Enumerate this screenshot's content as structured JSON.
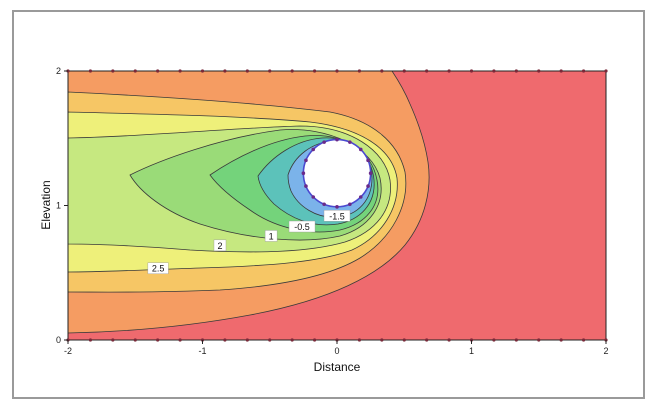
{
  "chart_data": {
    "type": "heatmap",
    "subtype": "filled-contour",
    "title": "",
    "xlabel": "Distance",
    "ylabel": "Elevation",
    "xlim": [
      -2,
      2
    ],
    "ylim": [
      0,
      2
    ],
    "x_ticks": [
      "-2",
      "-1",
      "0",
      "1",
      "2"
    ],
    "y_ticks": [
      "0",
      "1",
      "2"
    ],
    "contour_labels": [
      {
        "text": "-1.5",
        "x": 0.0,
        "y": 0.92
      },
      {
        "text": "-0.5",
        "x": -0.26,
        "y": 0.84
      },
      {
        "text": "1",
        "x": -0.49,
        "y": 0.77
      },
      {
        "text": "2",
        "x": -0.87,
        "y": 0.7
      },
      {
        "text": "2.5",
        "x": -1.33,
        "y": 0.53
      }
    ],
    "hole": {
      "center": [
        0,
        1.24
      ],
      "radius": 0.25
    },
    "colors": {
      "highest": "#ef6a6e",
      "high": "#f59c62",
      "mid_high": "#f6c665",
      "mid": "#eef07a",
      "mid_low": "#c6e880",
      "low": "#9adb78",
      "lower": "#74d37b",
      "lowest": "#5cc2ba",
      "min": "#7bb3ea",
      "hole_ring": "#4b4ad0"
    }
  }
}
